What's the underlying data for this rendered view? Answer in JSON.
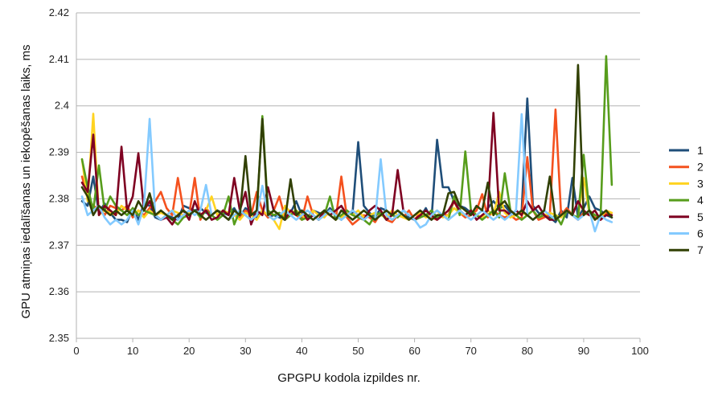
{
  "chart_data": {
    "type": "line",
    "title": "",
    "xlabel": "GPGPU kodola izpildes nr.",
    "ylabel": "GPU atmiņas iedalīšanas un iekopēšanas laiks, ms",
    "xlim": [
      0,
      100
    ],
    "ylim": [
      2.35,
      2.42
    ],
    "xticks": [
      0,
      10,
      20,
      30,
      40,
      50,
      60,
      70,
      80,
      90,
      100
    ],
    "yticks": [
      2.35,
      2.36,
      2.37,
      2.38,
      2.39,
      2.4,
      2.41,
      2.42
    ],
    "ytick_labels": [
      "2.35",
      "2.36",
      "2.37",
      "2.38",
      "2.39",
      "2.4",
      "2.41",
      "2.42"
    ],
    "grid": "horizontal",
    "legend_position": "right",
    "x": [
      1,
      2,
      3,
      4,
      5,
      6,
      7,
      8,
      9,
      10,
      11,
      12,
      13,
      14,
      15,
      16,
      17,
      18,
      19,
      20,
      21,
      22,
      23,
      24,
      25,
      26,
      27,
      28,
      29,
      30,
      31,
      32,
      33,
      34,
      35,
      36,
      37,
      38,
      39,
      40,
      41,
      42,
      43,
      44,
      45,
      46,
      47,
      48,
      49,
      50,
      51,
      52,
      53,
      54,
      55,
      56,
      57,
      58,
      59,
      60,
      61,
      62,
      63,
      64,
      65,
      66,
      67,
      68,
      69,
      70,
      71,
      72,
      73,
      74,
      75,
      76,
      77,
      78,
      79,
      80,
      81,
      82,
      83,
      84,
      85,
      86,
      87,
      88,
      89,
      90,
      91,
      92,
      93,
      94,
      95
    ],
    "series": [
      {
        "name": "1",
        "color": "#1f4e79",
        "values": [
          2.3795,
          2.3785,
          2.3848,
          2.377,
          2.379,
          2.377,
          2.3755,
          2.3755,
          2.375,
          2.378,
          2.3755,
          2.379,
          2.3785,
          2.376,
          2.3755,
          2.3765,
          2.376,
          2.3755,
          2.3785,
          2.378,
          2.3775,
          2.378,
          2.377,
          2.3765,
          2.3775,
          2.377,
          2.3765,
          2.378,
          2.376,
          2.378,
          2.377,
          2.376,
          2.3775,
          2.376,
          2.3765,
          2.376,
          2.3755,
          2.377,
          2.3795,
          2.3765,
          2.376,
          2.3775,
          2.377,
          2.3765,
          2.378,
          2.3765,
          2.3755,
          2.377,
          2.377,
          2.3922,
          2.3785,
          2.377,
          2.376,
          2.378,
          2.3775,
          2.3765,
          2.3775,
          2.3765,
          2.376,
          2.3755,
          2.376,
          2.378,
          2.3755,
          2.3927,
          2.3825,
          2.3825,
          2.3795,
          2.3785,
          2.378,
          2.377,
          2.3765,
          2.376,
          2.378,
          2.3795,
          2.378,
          2.3785,
          2.377,
          2.3765,
          2.3775,
          2.4016,
          2.3785,
          2.377,
          2.3765,
          2.376,
          2.375,
          2.3775,
          2.376,
          2.3845,
          2.376,
          2.378,
          2.3805,
          2.378,
          2.3775,
          2.3765,
          2.376
        ]
      },
      {
        "name": "2",
        "color": "#f4511e",
        "values": [
          2.3848,
          2.3803,
          2.3784,
          2.378,
          2.3765,
          2.3785,
          2.378,
          2.3775,
          2.3785,
          2.376,
          2.3775,
          2.3765,
          2.378,
          2.3795,
          2.3815,
          2.378,
          2.3765,
          2.3845,
          2.3775,
          2.3765,
          2.3845,
          2.3755,
          2.378,
          2.3765,
          2.3775,
          2.3765,
          2.3755,
          2.3765,
          2.376,
          2.3775,
          2.3765,
          2.3815,
          2.3775,
          2.376,
          2.3775,
          2.3805,
          2.376,
          2.377,
          2.3765,
          2.3755,
          2.3805,
          2.3765,
          2.3755,
          2.377,
          2.3765,
          2.3755,
          2.3848,
          2.376,
          2.3745,
          2.3755,
          2.3765,
          2.376,
          2.375,
          2.377,
          2.3755,
          2.375,
          2.3765,
          2.376,
          2.3775,
          2.3755,
          2.377,
          2.3765,
          2.376,
          2.3755,
          2.3765,
          2.3765,
          2.3795,
          2.377,
          2.376,
          2.3765,
          2.3775,
          2.381,
          2.376,
          2.3775,
          2.3765,
          2.376,
          2.3765,
          2.3755,
          2.376,
          2.389,
          2.3775,
          2.3755,
          2.376,
          2.3765,
          2.3992,
          2.3765,
          2.378,
          2.3765,
          2.3755,
          2.377,
          2.3765,
          2.376,
          2.3755,
          2.377,
          2.3765
        ]
      },
      {
        "name": "3",
        "color": "#ffd320",
        "values": [
          2.3885,
          2.3795,
          2.3983,
          2.3765,
          2.3775,
          2.377,
          2.3765,
          2.3785,
          2.3775,
          2.3765,
          2.3775,
          2.376,
          2.3775,
          2.3765,
          2.377,
          2.3765,
          2.3775,
          2.377,
          2.3765,
          2.377,
          2.3775,
          2.3765,
          2.3775,
          2.3805,
          2.3765,
          2.3775,
          2.377,
          2.3765,
          2.3755,
          2.377,
          2.3765,
          2.3755,
          2.3775,
          2.3765,
          2.3755,
          2.3735,
          2.3785,
          2.377,
          2.3775,
          2.3765,
          2.3755,
          2.3775,
          2.3765,
          2.376,
          2.3775,
          2.3765,
          2.376,
          2.377,
          2.3765,
          2.3775,
          2.376,
          2.3765,
          2.377,
          2.3765,
          2.376,
          2.3775,
          2.3765,
          2.376,
          2.3755,
          2.3765,
          2.377,
          2.376,
          2.3765,
          2.3775,
          2.376,
          2.3765,
          2.378,
          2.377,
          2.3765,
          2.3775,
          2.3765,
          2.376,
          2.3775,
          2.3765,
          2.3815,
          2.377,
          2.376,
          2.3765,
          2.377,
          2.3765,
          2.3775,
          2.376,
          2.3765,
          2.377,
          2.3765,
          2.376,
          2.3775,
          2.3765,
          2.376,
          2.3845,
          2.377,
          2.3765,
          2.376,
          2.3775,
          2.377
        ]
      },
      {
        "name": "4",
        "color": "#579d1c",
        "values": [
          2.3885,
          2.3825,
          2.3775,
          2.3872,
          2.3775,
          2.3805,
          2.3785,
          2.3775,
          2.3765,
          2.378,
          2.3765,
          2.3775,
          2.377,
          2.3765,
          2.3755,
          2.3765,
          2.3755,
          2.3745,
          2.376,
          2.3765,
          2.3775,
          2.376,
          2.3775,
          2.3765,
          2.3755,
          2.3765,
          2.3805,
          2.3745,
          2.3775,
          2.3765,
          2.3755,
          2.3765,
          2.3978,
          2.3775,
          2.3765,
          2.377,
          2.3755,
          2.3765,
          2.3775,
          2.3755,
          2.376,
          2.3765,
          2.3755,
          2.3765,
          2.3805,
          2.3755,
          2.3765,
          2.3775,
          2.3765,
          2.376,
          2.3755,
          2.3745,
          2.3765,
          2.377,
          2.3755,
          2.3765,
          2.376,
          2.3775,
          2.3765,
          2.3755,
          2.376,
          2.3765,
          2.3775,
          2.376,
          2.3765,
          2.3755,
          2.3805,
          2.3765,
          2.3902,
          2.3775,
          2.3765,
          2.3755,
          2.3765,
          2.3775,
          2.376,
          2.3855,
          2.3775,
          2.3765,
          2.3755,
          2.3765,
          2.3775,
          2.376,
          2.3765,
          2.3755,
          2.3765,
          2.3745,
          2.3775,
          2.3765,
          2.376,
          2.3895,
          2.3775,
          2.3765,
          2.376,
          2.4107,
          2.383
        ]
      },
      {
        "name": "5",
        "color": "#7e0021",
        "values": [
          2.3835,
          2.3815,
          2.3938,
          2.3765,
          2.3785,
          2.3775,
          2.3765,
          2.3912,
          2.3775,
          2.3805,
          2.3898,
          2.3775,
          2.3795,
          2.3765,
          2.3755,
          2.376,
          2.3745,
          2.3765,
          2.3775,
          2.3755,
          2.3795,
          2.3765,
          2.3775,
          2.3755,
          2.376,
          2.3775,
          2.3765,
          2.3845,
          2.3775,
          2.3815,
          2.3745,
          2.3775,
          2.3765,
          2.3825,
          2.3775,
          2.3765,
          2.3755,
          2.3775,
          2.3765,
          2.3775,
          2.3755,
          2.3765,
          2.3755,
          2.3775,
          2.3765,
          2.3775,
          2.3785,
          2.3765,
          2.3775,
          2.3765,
          2.3755,
          2.3775,
          2.3785,
          2.3775,
          2.3755,
          2.3765,
          2.3862,
          2.3775,
          2.3765,
          2.3755,
          2.3765,
          2.3775,
          2.3765,
          2.3755,
          2.3765,
          2.3775,
          2.3795,
          2.3775,
          2.3765,
          2.3775,
          2.3755,
          2.3765,
          2.3775,
          2.3985,
          2.3775,
          2.3775,
          2.3765,
          2.3775,
          2.3765,
          2.3795,
          2.3775,
          2.3785,
          2.3765,
          2.3755,
          2.3755,
          2.3765,
          2.3775,
          2.3765,
          2.3795,
          2.3775,
          2.3765,
          2.3775,
          2.3755,
          2.3765,
          2.3765
        ]
      },
      {
        "name": "6",
        "color": "#83caff",
        "values": [
          2.3805,
          2.3765,
          2.3775,
          2.3785,
          2.376,
          2.3745,
          2.3755,
          2.3745,
          2.3755,
          2.3775,
          2.3745,
          2.3785,
          2.3972,
          2.3765,
          2.3755,
          2.3765,
          2.3775,
          2.3755,
          2.3765,
          2.3775,
          2.3765,
          2.3775,
          2.383,
          2.3765,
          2.3775,
          2.3765,
          2.3755,
          2.3765,
          2.3775,
          2.3765,
          2.3755,
          2.3765,
          2.3828,
          2.3765,
          2.3755,
          2.3765,
          2.3775,
          2.3765,
          2.3755,
          2.3765,
          2.3775,
          2.3765,
          2.3755,
          2.3765,
          2.3775,
          2.3765,
          2.3755,
          2.3765,
          2.3775,
          2.3765,
          2.3755,
          2.3765,
          2.3755,
          2.3885,
          2.3765,
          2.3755,
          2.3765,
          2.3775,
          2.3765,
          2.3755,
          2.3738,
          2.3745,
          2.3765,
          2.3775,
          2.3765,
          2.3755,
          2.3765,
          2.3775,
          2.3765,
          2.3755,
          2.3765,
          2.3775,
          2.3765,
          2.3755,
          2.3765,
          2.3755,
          2.3765,
          2.3775,
          2.3982,
          2.3765,
          2.3755,
          2.3765,
          2.3775,
          2.3765,
          2.3755,
          2.3765,
          2.3775,
          2.3765,
          2.3755,
          2.3765,
          2.3775,
          2.373,
          2.3765,
          2.3755,
          2.375
        ]
      },
      {
        "name": "7",
        "color": "#314004",
        "values": [
          2.3825,
          2.3805,
          2.3765,
          2.3785,
          2.3775,
          2.3765,
          2.3775,
          2.3765,
          2.3775,
          2.3765,
          2.3795,
          2.3775,
          2.3812,
          2.3765,
          2.3775,
          2.3765,
          2.3755,
          2.3765,
          2.3775,
          2.3765,
          2.3775,
          2.3765,
          2.3755,
          2.3765,
          2.3775,
          2.3765,
          2.3755,
          2.3775,
          2.3765,
          2.3892,
          2.3765,
          2.3775,
          2.3972,
          2.3765,
          2.3775,
          2.3765,
          2.3755,
          2.3842,
          2.3765,
          2.3775,
          2.3765,
          2.3755,
          2.3765,
          2.3775,
          2.3765,
          2.3755,
          2.3775,
          2.3765,
          2.3755,
          2.3765,
          2.3775,
          2.3765,
          2.3755,
          2.3765,
          2.3775,
          2.3765,
          2.3775,
          2.3765,
          2.3755,
          2.3765,
          2.3775,
          2.3765,
          2.3755,
          2.3765,
          2.3765,
          2.3812,
          2.3815,
          2.3785,
          2.3775,
          2.3765,
          2.3785,
          2.3775,
          2.3835,
          2.3765,
          2.3785,
          2.3795,
          2.3775,
          2.3765,
          2.3775,
          2.3765,
          2.3755,
          2.3765,
          2.3775,
          2.3848,
          2.3755,
          2.3765,
          2.3775,
          2.3765,
          2.4088,
          2.3765,
          2.3775,
          2.3755,
          2.3765,
          2.3775,
          2.376
        ]
      }
    ]
  }
}
